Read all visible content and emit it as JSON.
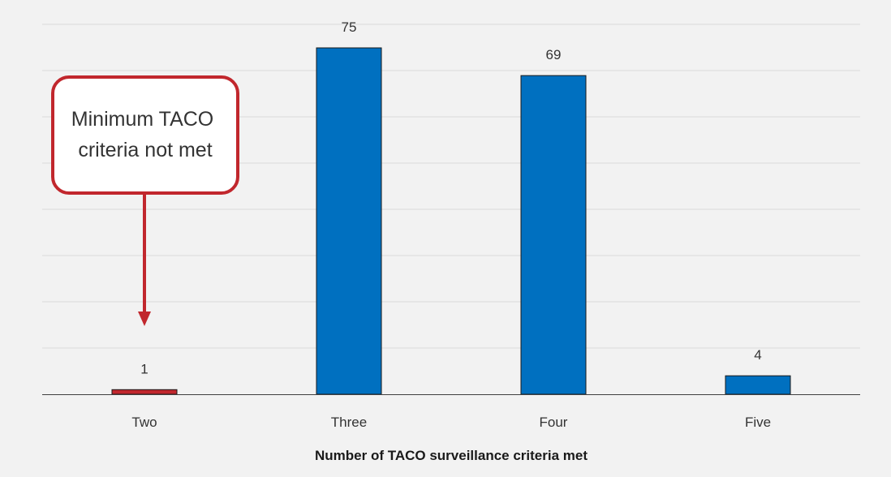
{
  "chart_data": {
    "type": "bar",
    "categories": [
      "Two",
      "Three",
      "Four",
      "Five"
    ],
    "values": [
      1,
      75,
      69,
      4
    ],
    "xlabel": "Number of TACO surveillance criteria met",
    "ylabel": "",
    "ylim": [
      0,
      75
    ],
    "grid": true,
    "colors": {
      "highlight": "#c1272d",
      "default": "#0070c0",
      "background": "#f2f2f2"
    },
    "highlight_category": "Two",
    "annotation": {
      "lines": [
        "Minimum TACO",
        "criteria not met"
      ],
      "target_category": "Two",
      "color": "#c1272d"
    }
  }
}
